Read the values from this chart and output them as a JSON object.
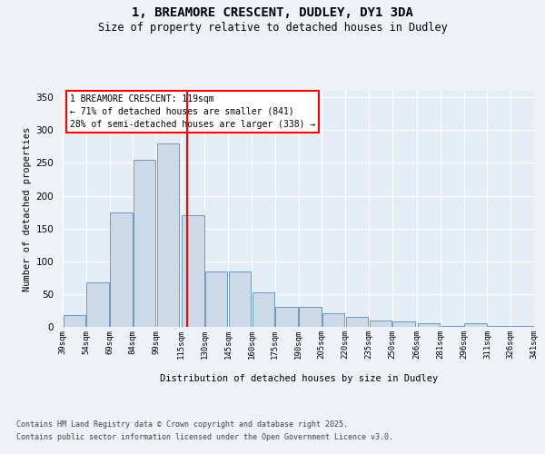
{
  "title_line1": "1, BREAMORE CRESCENT, DUDLEY, DY1 3DA",
  "title_line2": "Size of property relative to detached houses in Dudley",
  "xlabel": "Distribution of detached houses by size in Dudley",
  "ylabel": "Number of detached properties",
  "bar_color": "#ccd9e8",
  "bar_edge_color": "#5b8db8",
  "vline_color": "red",
  "vline_x": 119,
  "annotation_title": "1 BREAMORE CRESCENT: 119sqm",
  "annotation_line2": "← 71% of detached houses are smaller (841)",
  "annotation_line3": "28% of semi-detached houses are larger (338) →",
  "annotation_box_color": "white",
  "annotation_box_edge": "red",
  "footer_line1": "Contains HM Land Registry data © Crown copyright and database right 2025.",
  "footer_line2": "Contains public sector information licensed under the Open Government Licence v3.0.",
  "bins": [
    39,
    54,
    69,
    84,
    99,
    115,
    130,
    145,
    160,
    175,
    190,
    205,
    220,
    235,
    250,
    266,
    281,
    296,
    311,
    326,
    341
  ],
  "counts": [
    18,
    68,
    175,
    255,
    280,
    170,
    85,
    85,
    52,
    30,
    30,
    21,
    15,
    10,
    9,
    6,
    2,
    5,
    2,
    1,
    1
  ],
  "ylim": [
    0,
    360
  ],
  "yticks": [
    0,
    50,
    100,
    150,
    200,
    250,
    300,
    350
  ],
  "bg_color": "#eef2f7",
  "plot_bg_color": "#e4ecf5"
}
